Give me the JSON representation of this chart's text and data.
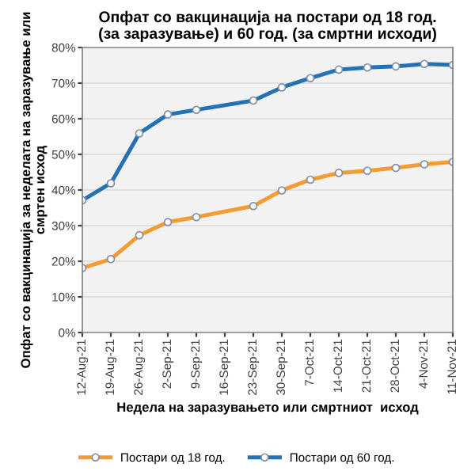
{
  "chart_data": {
    "type": "line",
    "title": "Опфат со вакцинација на постари од 18 год.\n(за заразување) и 60 год. (за смртни исходи)",
    "xlabel": "Недела на заразувањето или смртниот  исход",
    "ylabel": "Опфат со вакцинација за неделата на заразување или\nсмртен исход",
    "categories": [
      "12-Aug-21",
      "19-Aug-21",
      "26-Aug-21",
      "2-Sep-21",
      "9-Sep-21",
      "16-Sep-21",
      "23-Sep-21",
      "30-Sep-21",
      "7-Oct-21",
      "14-Oct-21",
      "21-Oct-21",
      "28-Oct-21",
      "4-Nov-21",
      "11-Nov-21"
    ],
    "series": [
      {
        "name": "Постари од 18 год.",
        "color": "#f39c33",
        "values": [
          18.1,
          20.6,
          27.3,
          31.0,
          32.4,
          null,
          35.5,
          39.9,
          42.9,
          44.8,
          45.4,
          46.2,
          47.2,
          47.9
        ]
      },
      {
        "name": "Постари од 60 год.",
        "color": "#2471b3",
        "values": [
          37.1,
          41.9,
          55.9,
          61.2,
          62.5,
          null,
          65.1,
          68.8,
          71.4,
          73.8,
          74.4,
          74.7,
          75.4,
          75.1
        ]
      }
    ],
    "ylim": [
      0,
      80
    ],
    "yticks": [
      {
        "value": 0,
        "label": "0%"
      },
      {
        "value": 10,
        "label": "10%"
      },
      {
        "value": 20,
        "label": "20%"
      },
      {
        "value": 30,
        "label": "30%"
      },
      {
        "value": 40,
        "label": "40%"
      },
      {
        "value": 50,
        "label": "50%"
      },
      {
        "value": 60,
        "label": "60%"
      },
      {
        "value": 70,
        "label": "70%"
      },
      {
        "value": 80,
        "label": "80%"
      }
    ],
    "grid": "y",
    "legend": "bottom",
    "marker": "circle",
    "line_style": "solid"
  }
}
